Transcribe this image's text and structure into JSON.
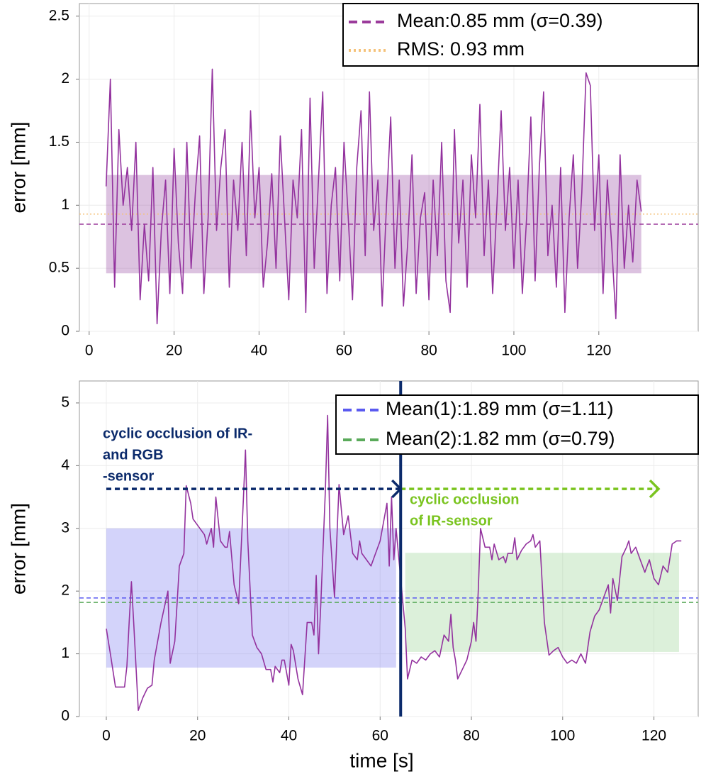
{
  "chart_data": [
    {
      "type": "line",
      "ylabel": "error [mm]",
      "xlim": [
        -2.3,
        143.4
      ],
      "ylim": [
        0,
        2.6
      ],
      "xticks": [
        0,
        20,
        40,
        60,
        80,
        100,
        120
      ],
      "yticks": [
        0,
        0.5,
        1,
        1.5,
        2,
        2.5
      ],
      "grid": true,
      "series": [
        {
          "color": "#93329e",
          "x": [
            4,
            5,
            6,
            7,
            8,
            9,
            10,
            11,
            12,
            13,
            14,
            15,
            16,
            17,
            18,
            19,
            20,
            21,
            22,
            23,
            24,
            25,
            26,
            27,
            28,
            29,
            30,
            31,
            32,
            33,
            34,
            35,
            36,
            37,
            38,
            39,
            40,
            41,
            42,
            43,
            44,
            45,
            46,
            47,
            48,
            49,
            50,
            51,
            52,
            53,
            54,
            55,
            56,
            57,
            58,
            59,
            60,
            61,
            62,
            63,
            64,
            65,
            66,
            67,
            68,
            69,
            70,
            71,
            72,
            73,
            74,
            75,
            76,
            77,
            78,
            79,
            80,
            81,
            82,
            83,
            84,
            85,
            86,
            87,
            88,
            89,
            90,
            91,
            92,
            93,
            94,
            95,
            96,
            97,
            98,
            99,
            100,
            101,
            102,
            103,
            104,
            105,
            106,
            107,
            108,
            109,
            110,
            111,
            112,
            113,
            114,
            115,
            116,
            117,
            118,
            119,
            120,
            121,
            122,
            123,
            124,
            125,
            126,
            127,
            128,
            129,
            130
          ],
          "values": [
            1.15,
            2.0,
            0.35,
            1.6,
            1.0,
            1.3,
            0.8,
            1.5,
            0.25,
            0.85,
            0.4,
            1.3,
            0.06,
            0.8,
            1.2,
            0.3,
            1.45,
            0.7,
            0.3,
            1.5,
            0.5,
            1.1,
            1.55,
            0.3,
            0.9,
            2.08,
            0.8,
            1.3,
            1.6,
            0.35,
            1.2,
            0.8,
            1.5,
            0.6,
            1.75,
            0.9,
            1.3,
            0.35,
            0.7,
            1.25,
            0.5,
            1.55,
            0.9,
            0.25,
            1.2,
            0.9,
            1.6,
            0.15,
            1.85,
            0.5,
            1.2,
            1.9,
            0.3,
            1.0,
            1.3,
            0.4,
            1.5,
            0.9,
            0.25,
            1.3,
            1.75,
            0.6,
            1.9,
            0.8,
            1.2,
            0.2,
            1.0,
            1.7,
            0.5,
            1.2,
            0.2,
            0.7,
            1.4,
            0.3,
            0.9,
            1.1,
            0.25,
            1.2,
            0.6,
            1.5,
            0.4,
            0.15,
            1.6,
            0.7,
            1.2,
            0.35,
            1.4,
            0.9,
            1.8,
            0.6,
            1.2,
            0.3,
            1.0,
            1.75,
            0.8,
            1.3,
            0.5,
            1.2,
            0.3,
            0.9,
            1.7,
            0.4,
            1.3,
            1.9,
            0.6,
            1.0,
            0.35,
            1.3,
            0.15,
            0.9,
            1.4,
            0.5,
            1.1,
            2.05,
            1.95,
            0.8,
            1.4,
            0.3,
            1.2,
            0.7,
            0.1,
            1.4,
            0.5,
            1.0,
            0.55,
            1.2,
            0.95
          ]
        }
      ],
      "bands": [
        {
          "x": [
            4,
            130
          ],
          "y": [
            0.46,
            1.24
          ],
          "color": "#9b4fa6"
        }
      ],
      "hlines": [
        {
          "label": "Mean:0.85 mm (σ=0.39)",
          "value": 0.85,
          "color": "#9b3b9b",
          "dash": "dashed"
        },
        {
          "label": "RMS: 0.93 mm",
          "value": 0.93,
          "color": "#f5c27a",
          "dash": "dotted"
        }
      ],
      "vlines": [],
      "arrows": [],
      "annotations": []
    },
    {
      "type": "line",
      "xlabel": "time [s]",
      "ylabel": "error [mm]",
      "xlim": [
        -5.9,
        129.7
      ],
      "ylim": [
        0,
        5.35
      ],
      "xticks": [
        0,
        20,
        40,
        60,
        80,
        100,
        120
      ],
      "yticks": [
        0,
        1,
        2,
        3,
        4,
        5
      ],
      "grid": true,
      "series": [
        {
          "color": "#93329e",
          "x": [
            0,
            1,
            2,
            3,
            4,
            4.5,
            5,
            5.5,
            6,
            7,
            8,
            9,
            10,
            10.5,
            12,
            13.5,
            14,
            15,
            16,
            17,
            17.5,
            18.5,
            19,
            20,
            21.5,
            22,
            23,
            23.5,
            24,
            25,
            26,
            26.5,
            27,
            28,
            29,
            30,
            30.5,
            31,
            32,
            33,
            34,
            35,
            36,
            36.5,
            37,
            38,
            38.5,
            39,
            40,
            40.5,
            41,
            42,
            43,
            44,
            45,
            45.5,
            46,
            46.5,
            47,
            48,
            48.5,
            49,
            50,
            51,
            52,
            53,
            54,
            55,
            55.5,
            56,
            57,
            58,
            59,
            60,
            61,
            61.5,
            62,
            62.5,
            63,
            63.5,
            65.5,
            66,
            67,
            68,
            69,
            70,
            71,
            72,
            73,
            74,
            75,
            75.5,
            76,
            76.5,
            77,
            78,
            79,
            80,
            80.5,
            81,
            81.5,
            82,
            83,
            84,
            84.5,
            85,
            86,
            87,
            87.5,
            88,
            89,
            89.5,
            90,
            91,
            92,
            93,
            93.5,
            94,
            95,
            96,
            97,
            98,
            99,
            100,
            101,
            102,
            103,
            104,
            105,
            106,
            107,
            108,
            109,
            110,
            110.5,
            111,
            112,
            113,
            114,
            114.5,
            115,
            116,
            117,
            117.5,
            118,
            119,
            120,
            121,
            122,
            123,
            124,
            125,
            126
          ],
          "values": [
            1.4,
            0.95,
            0.47,
            0.47,
            0.47,
            0.8,
            1.5,
            2.15,
            1.5,
            0.1,
            0.3,
            0.45,
            0.5,
            0.9,
            1.5,
            2.0,
            0.85,
            1.2,
            2.4,
            2.6,
            3.68,
            3.4,
            3.15,
            3.05,
            2.9,
            2.75,
            3.0,
            2.7,
            3.5,
            2.8,
            2.7,
            2.7,
            2.95,
            2.1,
            1.8,
            3.4,
            4.25,
            2.8,
            1.3,
            1.1,
            1.0,
            0.75,
            0.75,
            0.55,
            0.8,
            0.7,
            0.9,
            0.9,
            0.5,
            1.15,
            1.05,
            0.6,
            0.35,
            1.5,
            1.5,
            1.3,
            2.25,
            1.0,
            1.8,
            3.6,
            4.8,
            3.0,
            1.9,
            3.7,
            2.9,
            3.2,
            2.6,
            2.5,
            2.8,
            2.6,
            2.5,
            2.4,
            2.6,
            2.8,
            3.2,
            3.4,
            2.4,
            3.5,
            2.5,
            3.0,
            1.4,
            0.6,
            0.9,
            0.85,
            0.95,
            0.9,
            1.0,
            1.05,
            0.95,
            1.3,
            1.2,
            1.63,
            1.1,
            0.9,
            0.6,
            0.75,
            0.9,
            1.2,
            1.5,
            1.2,
            2.0,
            3.0,
            2.7,
            2.7,
            2.5,
            2.75,
            2.5,
            2.55,
            2.45,
            2.6,
            2.6,
            2.85,
            2.5,
            2.65,
            2.75,
            2.8,
            2.9,
            2.7,
            2.8,
            1.5,
            0.98,
            1.05,
            1.1,
            0.95,
            0.85,
            0.9,
            0.85,
            1.0,
            0.85,
            1.35,
            1.6,
            1.7,
            1.9,
            2.1,
            1.65,
            2.2,
            1.85,
            2.55,
            2.7,
            2.8,
            2.6,
            2.7,
            2.5,
            2.4,
            2.3,
            2.5,
            2.2,
            2.1,
            2.4,
            2.3,
            2.75,
            2.8,
            2.8
          ]
        }
      ],
      "bands": [
        {
          "x": [
            0,
            63.5
          ],
          "y": [
            0.78,
            3.0
          ],
          "color": "#8080f0"
        },
        {
          "x": [
            65.5,
            125.5
          ],
          "y": [
            1.03,
            2.61
          ],
          "color": "#9cd394"
        }
      ],
      "hlines": [
        {
          "label": "Mean(1):1.89 mm (σ=1.11)",
          "value": 1.89,
          "color": "#5a5af0",
          "dash": "dashed"
        },
        {
          "label": "Mean(2):1.82 mm (σ=0.79)",
          "value": 1.82,
          "color": "#5aaa5a",
          "dash": "dashed"
        }
      ],
      "vlines": [
        {
          "value": 64.5,
          "color": "#0b2a6b"
        }
      ],
      "arrows": [
        {
          "from": 0,
          "to": 64.5,
          "y": 3.63,
          "color": "#0b2a6b"
        },
        {
          "from": 64.5,
          "to": 121,
          "y": 3.63,
          "color": "#7ac41f"
        }
      ],
      "annotations": [
        {
          "lines": [
            "cyclic occlusion of IR-",
            "and RGB",
            "-sensor"
          ],
          "color": "#0b2a6b"
        },
        {
          "lines": [
            "cyclic occlusion",
            "of IR-sensor"
          ],
          "color": "#7ac41f"
        }
      ]
    }
  ]
}
